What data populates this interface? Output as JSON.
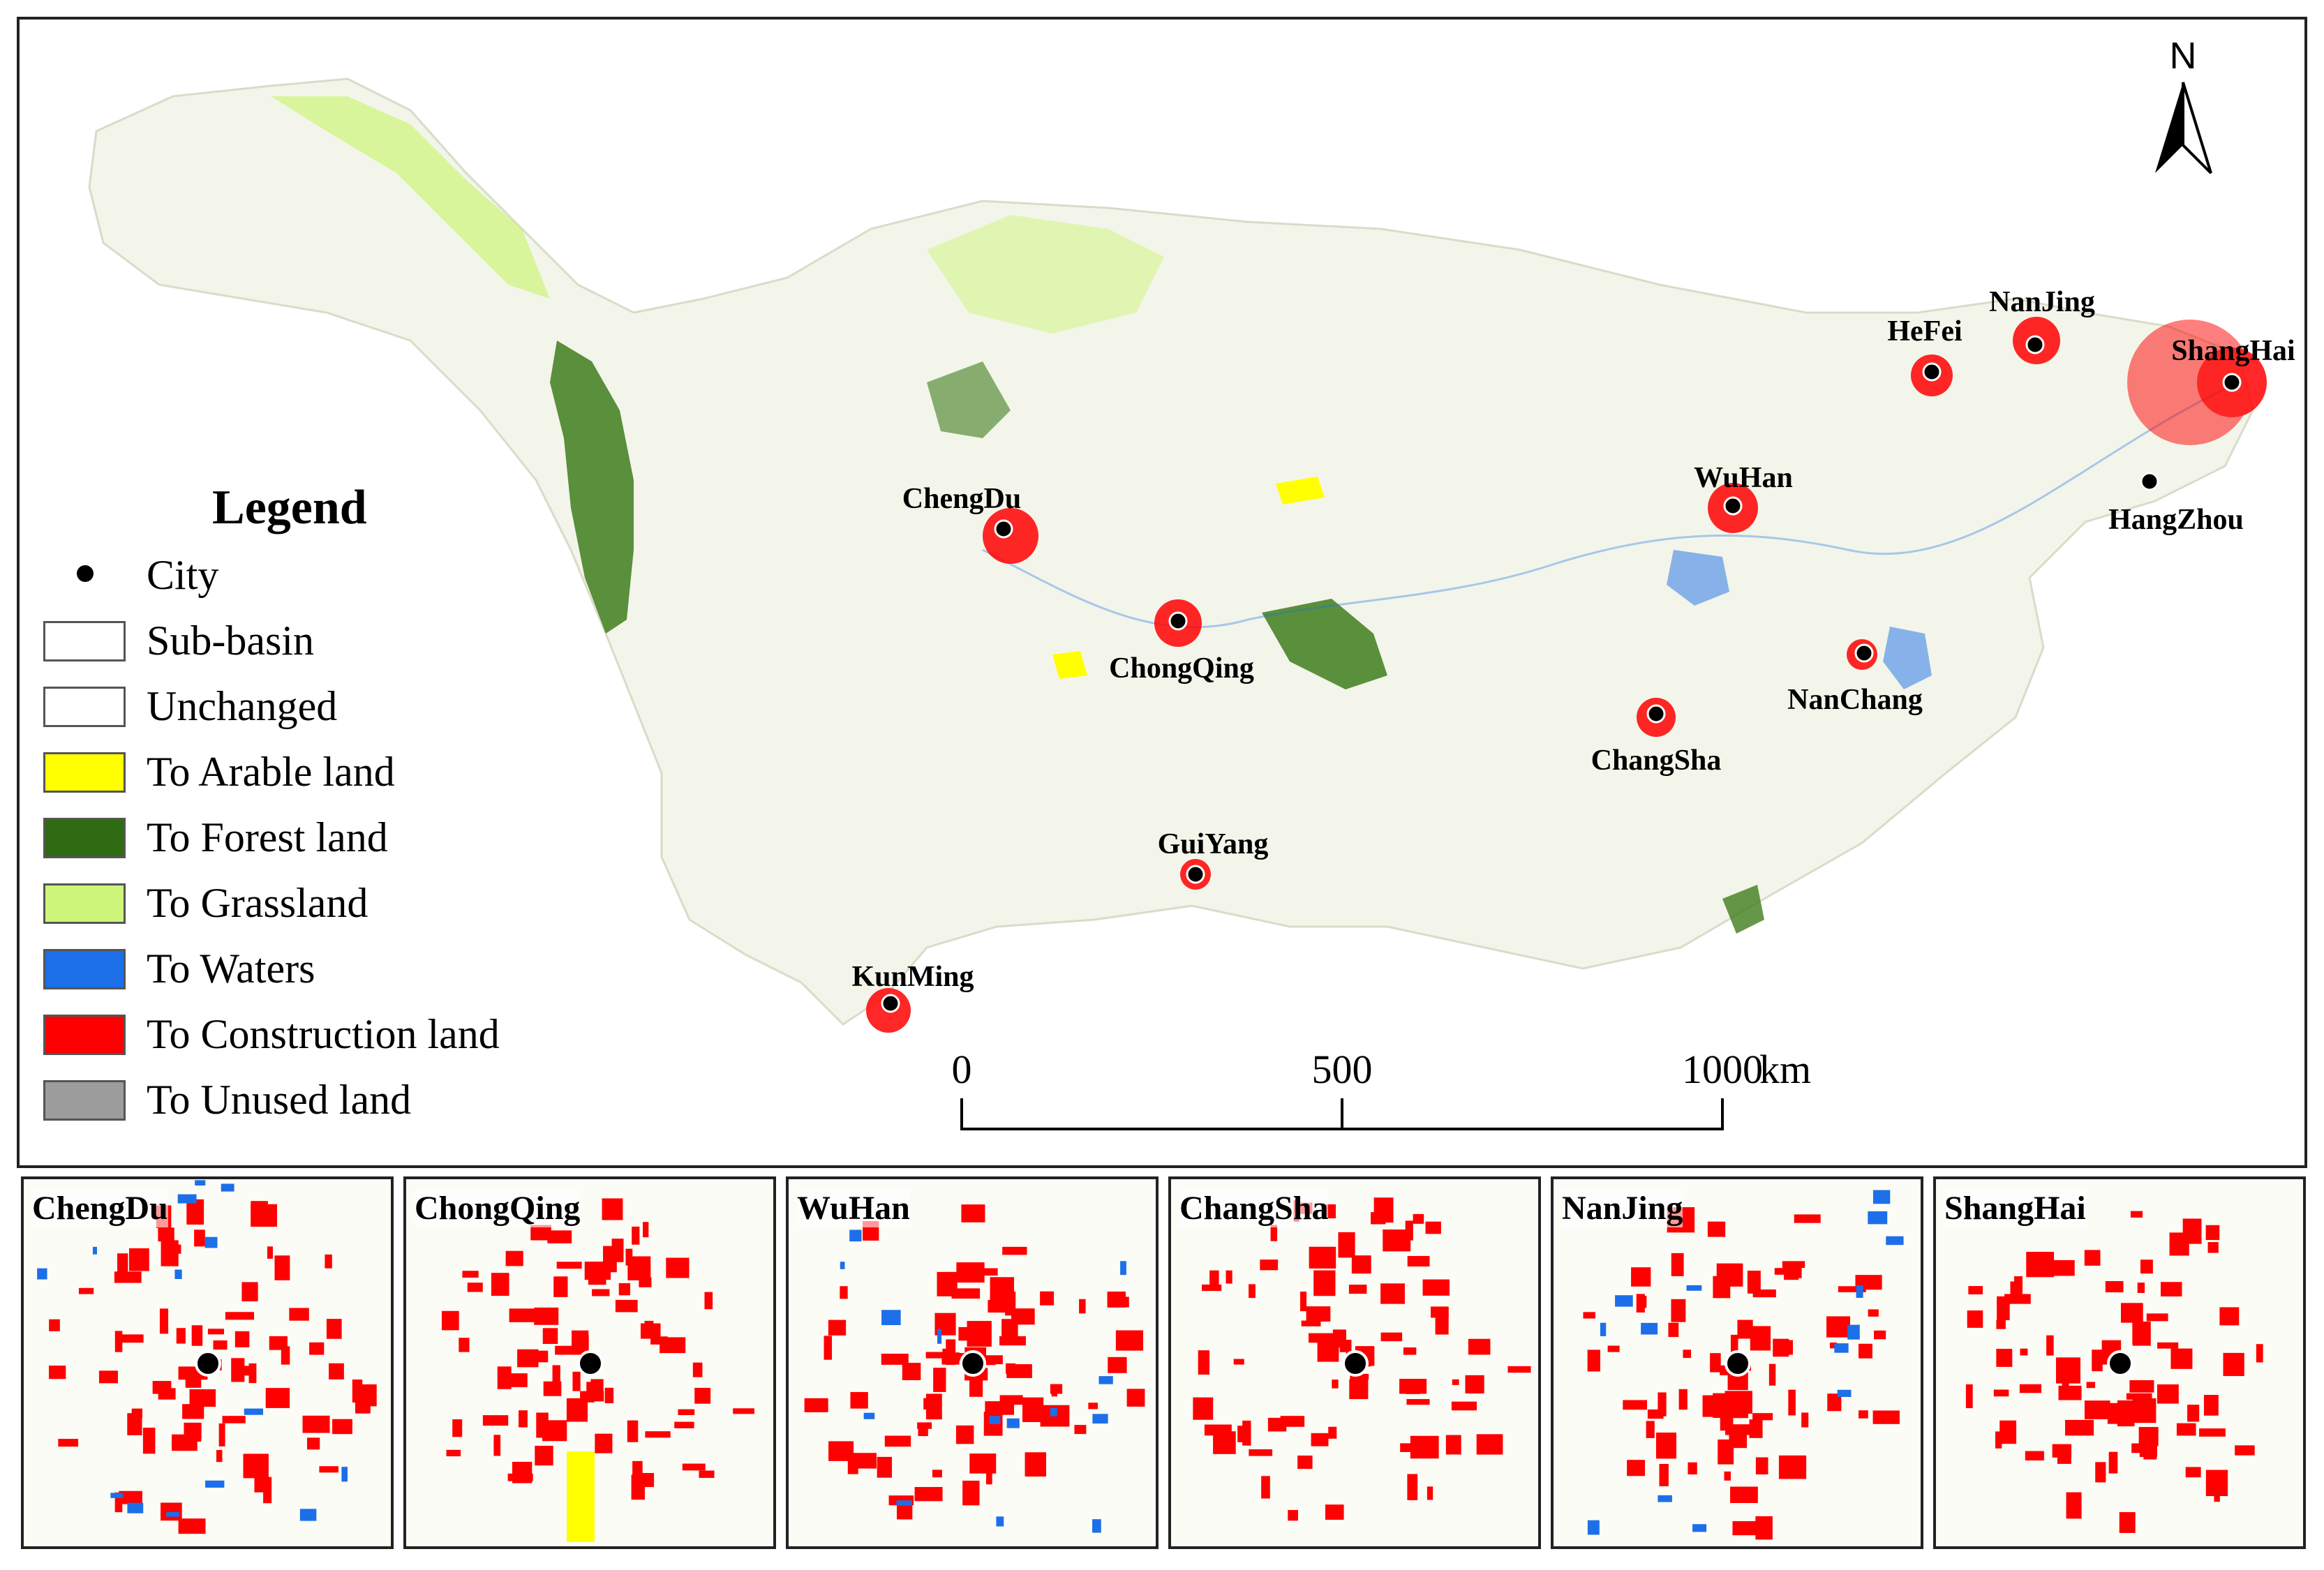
{
  "legend": {
    "title": "Legend",
    "items": [
      {
        "label": "City",
        "kind": "dot"
      },
      {
        "label": "Sub-basin",
        "color": "#ffffff"
      },
      {
        "label": "Unchanged",
        "color": "#ffffff"
      },
      {
        "label": "To Arable land",
        "color": "#ffff00"
      },
      {
        "label": "To Forest land",
        "color": "#2e6b12"
      },
      {
        "label": "To Grassland",
        "color": "#cdf57a"
      },
      {
        "label": "To Waters",
        "color": "#1c6fe8"
      },
      {
        "label": "To Construction land",
        "color": "#ff0000"
      },
      {
        "label": "To Unused land",
        "color": "#9c9c9c"
      }
    ]
  },
  "cities": [
    {
      "name": "ChengDu"
    },
    {
      "name": "ChongQing"
    },
    {
      "name": "GuiYang"
    },
    {
      "name": "KunMing"
    },
    {
      "name": "WuHan"
    },
    {
      "name": "ChangSha"
    },
    {
      "name": "NanChang"
    },
    {
      "name": "HeFei"
    },
    {
      "name": "NanJing"
    },
    {
      "name": "ShangHai"
    },
    {
      "name": "HangZhou"
    }
  ],
  "scale_bar": {
    "ticks": [
      "0",
      "500",
      "1000"
    ],
    "unit": "km"
  },
  "north_arrow": {
    "label": "N"
  },
  "insets": [
    {
      "name": "ChengDu"
    },
    {
      "name": "ChongQing"
    },
    {
      "name": "WuHan"
    },
    {
      "name": "ChangSha"
    },
    {
      "name": "NanJing"
    },
    {
      "name": "ShangHai"
    }
  ],
  "colors": {
    "construction": "#ff0000",
    "forest": "#2e6b12",
    "grassland": "#cdf57a",
    "arable": "#ffff00",
    "waters": "#1c6fe8",
    "unused": "#9c9c9c",
    "basin_tint": "#f3f5ea"
  }
}
